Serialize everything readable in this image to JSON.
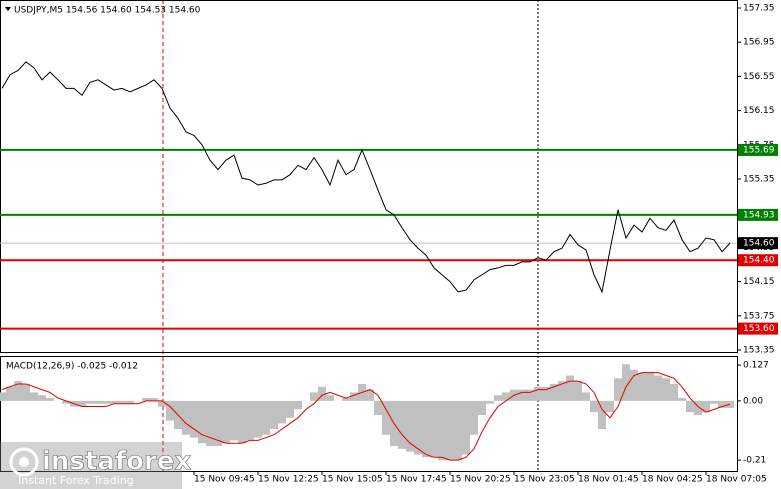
{
  "chart_data": [
    {
      "type": "line",
      "title": "USDJPY,M5  154.56 154.60 154.53 154.60",
      "categories": [
        null,
        null,
        null,
        null,
        null,
        null,
        null,
        null,
        null,
        null,
        null,
        null,
        null,
        null,
        null,
        null,
        null,
        null,
        null,
        null,
        null,
        null,
        null,
        null,
        "15 Nov 09:45",
        null,
        null,
        null,
        null,
        null,
        null,
        null,
        "15 Nov 12:25",
        null,
        null,
        null,
        null,
        null,
        null,
        null,
        "15 Nov 15:05",
        null,
        null,
        null,
        null,
        null,
        null,
        null,
        "15 Nov 17:45",
        null,
        null,
        null,
        null,
        null,
        null,
        null,
        "15 Nov 20:25",
        null,
        null,
        null,
        null,
        null,
        null,
        null,
        "15 Nov 23:05",
        null,
        null,
        null,
        null,
        null,
        null,
        null,
        "18 Nov 01:45",
        null,
        null,
        null,
        null,
        null,
        null,
        null,
        "18 Nov 04:25",
        null,
        null,
        null,
        null,
        null,
        null,
        null,
        "18 Nov 07:05",
        null,
        null,
        null
      ],
      "values": [
        156.41,
        156.57,
        156.62,
        156.72,
        156.65,
        156.51,
        156.6,
        156.51,
        156.41,
        156.41,
        156.33,
        156.48,
        156.51,
        156.45,
        156.39,
        156.41,
        156.37,
        156.41,
        156.45,
        156.51,
        156.41,
        156.18,
        156.06,
        155.9,
        155.86,
        155.75,
        155.57,
        155.46,
        155.57,
        155.63,
        155.36,
        155.34,
        155.28,
        155.3,
        155.34,
        155.34,
        155.4,
        155.51,
        155.46,
        155.6,
        155.46,
        155.28,
        155.57,
        155.4,
        155.46,
        155.69,
        155.46,
        155.22,
        154.99,
        154.93,
        154.78,
        154.64,
        154.54,
        154.46,
        154.31,
        154.23,
        154.15,
        154.03,
        154.05,
        154.17,
        154.23,
        154.29,
        154.31,
        154.34,
        154.34,
        154.38,
        154.38,
        154.43,
        154.4,
        154.5,
        154.54,
        154.7,
        154.58,
        154.52,
        154.23,
        154.03,
        154.52,
        154.99,
        154.66,
        154.81,
        154.73,
        154.89,
        154.78,
        154.75,
        154.87,
        154.64,
        154.5,
        154.54,
        154.66,
        154.64,
        154.5,
        154.6
      ],
      "color": "#000000",
      "ylim": [
        153.35,
        157.35
      ],
      "yticks": [
        157.35,
        156.95,
        156.55,
        156.15,
        155.75,
        155.35,
        154.95,
        154.55,
        154.15,
        153.75,
        153.35
      ],
      "levels": [
        {
          "value": 155.69,
          "label": "155.69",
          "color": "#008000"
        },
        {
          "value": 154.93,
          "label": "154.93",
          "color": "#008000"
        },
        {
          "value": 154.6,
          "label": "154.60",
          "color": "#000000",
          "line_color": "#c0c0c0"
        },
        {
          "value": 154.4,
          "label": "154.40",
          "color": "#e00000"
        },
        {
          "value": 153.6,
          "label": "153.60",
          "color": "#e00000"
        }
      ]
    },
    {
      "type": "bar",
      "title": "MACD(12,26,9) -0.025 -0.012",
      "series": [
        {
          "type": "bar",
          "color": "#c0c0c0",
          "values": [
            0.03,
            0.05,
            0.07,
            0.06,
            0.03,
            0.02,
            0.01,
            0.0,
            -0.01,
            -0.02,
            -0.02,
            -0.01,
            -0.01,
            -0.01,
            -0.01,
            -0.01,
            -0.01,
            0.0,
            0.01,
            0.01,
            -0.02,
            -0.07,
            -0.1,
            -0.12,
            -0.13,
            -0.15,
            -0.16,
            -0.16,
            -0.15,
            -0.14,
            -0.15,
            -0.14,
            -0.13,
            -0.12,
            -0.1,
            -0.08,
            -0.06,
            -0.03,
            0.0,
            0.03,
            0.05,
            0.02,
            0.0,
            0.01,
            0.03,
            0.06,
            0.04,
            -0.05,
            -0.12,
            -0.16,
            -0.17,
            -0.18,
            -0.19,
            -0.2,
            -0.2,
            -0.21,
            -0.21,
            -0.21,
            -0.19,
            -0.12,
            -0.05,
            -0.01,
            0.02,
            0.03,
            0.04,
            0.04,
            0.04,
            0.05,
            0.05,
            0.06,
            0.07,
            0.09,
            0.07,
            0.03,
            -0.04,
            -0.1,
            -0.04,
            0.08,
            0.13,
            0.11,
            0.1,
            0.1,
            0.09,
            0.08,
            0.06,
            0.01,
            -0.04,
            -0.05,
            -0.04,
            -0.01,
            -0.025,
            -0.025
          ]
        },
        {
          "type": "line",
          "color": "#e00000",
          "values": [
            0.04,
            0.05,
            0.06,
            0.06,
            0.05,
            0.04,
            0.03,
            0.01,
            0.0,
            -0.01,
            -0.02,
            -0.02,
            -0.02,
            -0.02,
            -0.01,
            -0.01,
            -0.01,
            -0.01,
            0.0,
            0.0,
            0.0,
            -0.02,
            -0.05,
            -0.08,
            -0.1,
            -0.12,
            -0.13,
            -0.14,
            -0.15,
            -0.15,
            -0.15,
            -0.14,
            -0.14,
            -0.13,
            -0.12,
            -0.1,
            -0.08,
            -0.06,
            -0.03,
            -0.01,
            0.02,
            0.03,
            0.02,
            0.01,
            0.02,
            0.03,
            0.04,
            0.02,
            -0.03,
            -0.08,
            -0.12,
            -0.15,
            -0.17,
            -0.19,
            -0.2,
            -0.2,
            -0.21,
            -0.21,
            -0.2,
            -0.17,
            -0.11,
            -0.06,
            -0.02,
            0.0,
            0.02,
            0.03,
            0.03,
            0.04,
            0.04,
            0.05,
            0.06,
            0.07,
            0.07,
            0.06,
            0.03,
            -0.03,
            -0.06,
            -0.02,
            0.05,
            0.09,
            0.1,
            0.1,
            0.1,
            0.09,
            0.08,
            0.05,
            0.01,
            -0.02,
            -0.04,
            -0.03,
            -0.02,
            -0.012
          ]
        }
      ],
      "ylim": [
        -0.245,
        0.152
      ],
      "yticks": [
        0.127,
        {
          "value": 0,
          "label": "0.00"
        },
        -0.21
      ]
    }
  ],
  "watermark": {
    "brand": "instaforex",
    "tagline": "Instant Forex Trading"
  }
}
